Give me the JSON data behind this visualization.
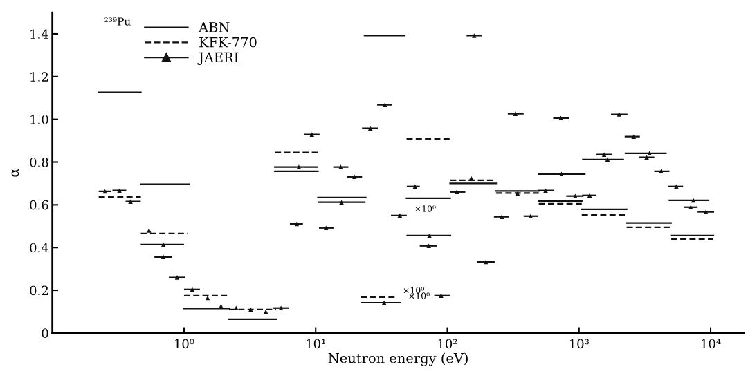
{
  "chart_data": {
    "type": "line",
    "xlabel": "Neutron energy (eV)",
    "ylabel": "α",
    "log": "x",
    "xlim": [
      0.1,
      18000
    ],
    "xticks": [
      {
        "value": 1,
        "label": "10⁰"
      },
      {
        "value": 10,
        "label": "10¹"
      },
      {
        "value": 100,
        "label": "10²"
      },
      {
        "value": 1000,
        "label": "10³"
      },
      {
        "value": 10000,
        "label": "10⁴"
      }
    ],
    "ylim": [
      0,
      1.5
    ],
    "yticks": [
      0,
      0.2,
      0.4,
      0.6,
      0.8,
      {
        "value": 1,
        "label": "1.0"
      },
      1.2,
      1.4
    ],
    "grid": false,
    "legend": "top left",
    "annotations": [
      "²³⁹Pu",
      {
        "text": "×10⁰",
        "x": 49,
        "y": 0.55
      },
      {
        "text": "×10⁰",
        "x": 40,
        "y": 0.168
      },
      {
        "text": "×10⁰",
        "x": 44,
        "y": 0.142
      }
    ],
    "series": [
      {
        "name": "ABN",
        "line_style": "solid",
        "color": "#111111",
        "x": [
          0.225,
          0.47,
          null,
          0.47,
          1.09,
          null,
          1.0,
          2.2,
          null,
          2.2,
          5,
          null,
          4.9,
          10.4,
          null,
          10.4,
          24,
          null,
          23.5,
          47.5,
          null,
          49,
          105,
          null,
          105,
          235,
          null,
          235,
          495,
          null,
          495,
          1050,
          null,
          1050,
          2300,
          null,
          2300,
          5000,
          null,
          5000,
          10500
        ],
        "values": [
          1.126,
          1.126,
          null,
          0.696,
          0.696,
          null,
          0.115,
          0.115,
          null,
          0.065,
          0.065,
          null,
          0.757,
          0.757,
          null,
          0.634,
          0.634,
          null,
          1.392,
          1.392,
          null,
          0.631,
          0.631,
          null,
          0.7,
          0.7,
          null,
          0.665,
          0.665,
          null,
          0.618,
          0.618,
          null,
          0.579,
          0.579,
          null,
          0.515,
          0.515,
          null,
          0.456,
          0.456
        ]
      },
      {
        "name": "KFK-770",
        "type": "line",
        "line_style": "dashed",
        "color": "#111111",
        "x": [
          0.225,
          0.47,
          null,
          0.47,
          1.06,
          null,
          1.0,
          2.2,
          null,
          2.2,
          5,
          null,
          4.9,
          10.4,
          null,
          22,
          40,
          null,
          49,
          105,
          null,
          105,
          235,
          null,
          235,
          495,
          null,
          495,
          1050,
          null,
          1050,
          2300,
          null,
          2300,
          5000,
          null,
          5000,
          10500
        ],
        "values": [
          0.637,
          0.637,
          null,
          0.466,
          0.466,
          null,
          0.175,
          0.175,
          null,
          0.11,
          0.11,
          null,
          0.845,
          0.845,
          null,
          0.168,
          0.168,
          null,
          0.909,
          0.909,
          null,
          0.715,
          0.715,
          null,
          0.655,
          0.655,
          null,
          0.605,
          0.605,
          null,
          0.553,
          0.553,
          null,
          0.495,
          0.495,
          null,
          0.44,
          0.44
        ]
      },
      {
        "name": "JAERI",
        "type": "scatter",
        "marker": "triangle",
        "color": "#111111",
        "x": [
          0.251,
          0.323,
          0.392,
          0.542,
          0.697,
          0.697,
          0.887,
          1.155,
          1.51,
          1.91,
          2.49,
          3.21,
          4.18,
          5.45,
          7.18,
          7.45,
          9.36,
          12.0,
          15.5,
          15.7,
          19.7,
          26.0,
          33.1,
          33.5,
          43.6,
          56.9,
          72.3,
          73.1,
          89.7,
          118,
          152,
          160,
          196,
          259,
          329,
          341,
          429,
          558,
          728,
          736,
          936,
          1205,
          1552,
          1648,
          2021,
          2601,
          3268,
          3430,
          4207,
          5483,
          7063,
          7396,
          9204
        ],
        "values": [
          0.663,
          0.667,
          0.615,
          0.48,
          0.414,
          0.356,
          0.26,
          0.204,
          0.165,
          0.126,
          0.117,
          0.11,
          0.1,
          0.117,
          0.511,
          0.777,
          0.929,
          0.492,
          0.777,
          0.612,
          0.731,
          0.958,
          0.142,
          1.068,
          0.55,
          0.686,
          0.408,
          0.456,
          0.175,
          0.66,
          0.725,
          1.392,
          0.333,
          0.544,
          1.026,
          0.654,
          0.547,
          0.667,
          1.006,
          0.744,
          0.641,
          0.644,
          0.835,
          0.812,
          1.023,
          0.919,
          0.822,
          0.841,
          0.757,
          0.686,
          0.589,
          0.621,
          0.567
        ],
        "xerrors": [
          [
            0.225,
            0.28
          ],
          [
            0.286,
            0.364
          ],
          [
            0.36,
            0.469
          ],
          null,
          [
            0.469,
            1.0
          ],
          [
            0.596,
            0.815
          ],
          [
            0.767,
            1.02
          ],
          [
            1.0,
            1.32
          ],
          null,
          null,
          null,
          null,
          null,
          [
            4.77,
            6.22
          ],
          [
            6.37,
            8.0
          ],
          [
            4.83,
            10.4
          ],
          [
            8.2,
            10.7
          ],
          [
            10.6,
            13.7
          ],
          [
            13.6,
            17.7
          ],
          [
            10.4,
            23.9
          ],
          [
            17.3,
            22.5
          ],
          [
            22.5,
            29.7
          ],
          [
            22.0,
            44.2
          ],
          [
            29.3,
            37.8
          ],
          [
            37.3,
            49.2
          ],
          [
            49.2,
            61.8
          ],
          [
            61.8,
            83.5
          ],
          [
            48.9,
            107
          ],
          [
            79.6,
            105
          ],
          [
            105,
            137
          ],
          null,
          [
            140,
            182
          ],
          [
            168,
            229
          ],
          [
            226,
            295
          ],
          [
            288,
            380
          ],
          null,
          [
            380,
            489
          ],
          [
            489,
            645
          ],
          [
            637,
            840
          ],
          [
            489,
            1122
          ],
          [
            800,
            1081
          ],
          [
            1056,
            1359
          ],
          [
            1359,
            1771
          ],
          [
            1056,
            2198
          ],
          [
            1749,
            2335
          ],
          [
            2224,
            2900
          ],
          [
            2864,
            3732
          ],
          [
            2224,
            4634
          ],
          [
            3732,
            4864
          ],
          [
            4746,
            6183
          ],
          [
            6252,
            7961
          ],
          [
            4800,
            9772
          ],
          [
            7961,
            10620
          ]
        ]
      }
    ]
  }
}
